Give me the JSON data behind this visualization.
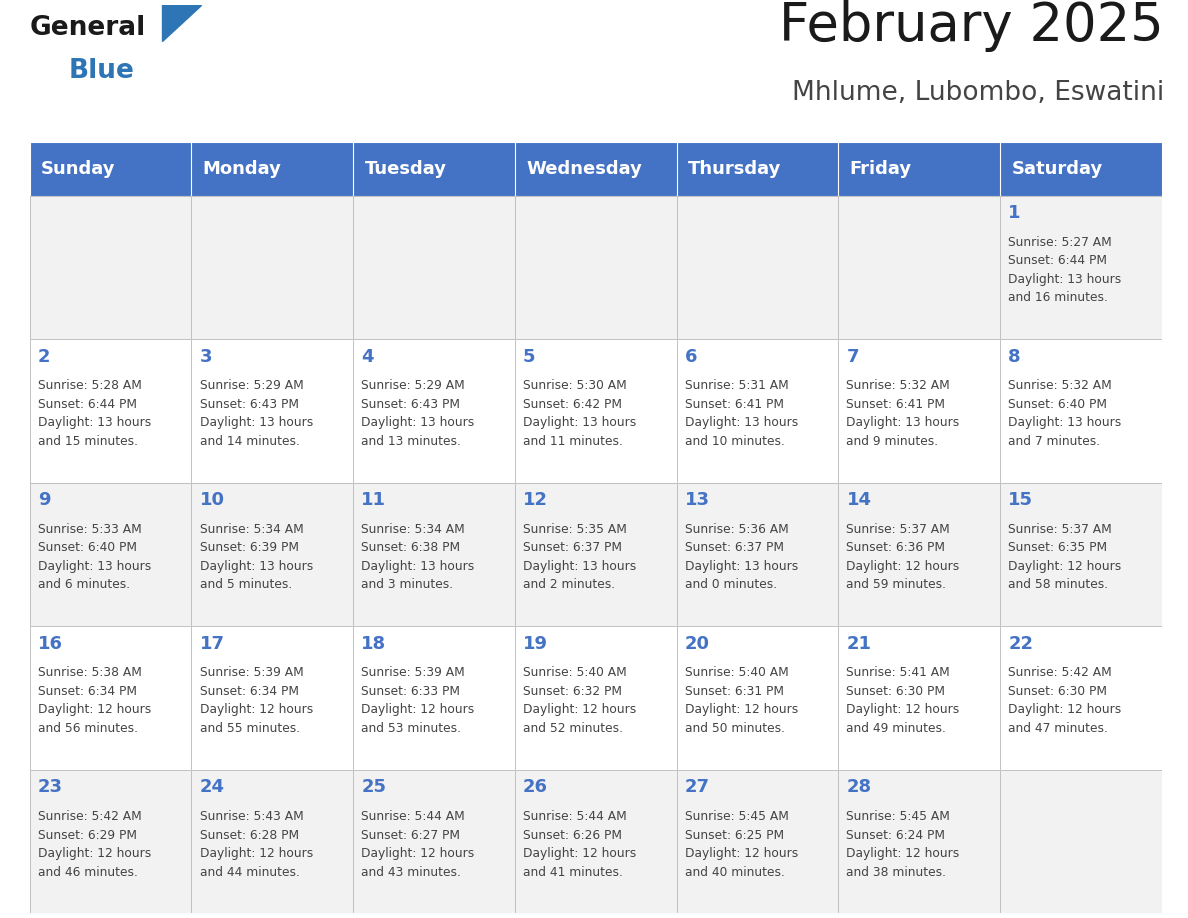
{
  "title": "February 2025",
  "subtitle": "Mhlume, Lubombo, Eswatini",
  "days_of_week": [
    "Sunday",
    "Monday",
    "Tuesday",
    "Wednesday",
    "Thursday",
    "Friday",
    "Saturday"
  ],
  "header_bg": "#4472C4",
  "header_text_color": "#FFFFFF",
  "cell_bg_even": "#F2F2F2",
  "cell_bg_odd": "#FFFFFF",
  "cell_border_color": "#AAAAAA",
  "day_number_color": "#4472C4",
  "cell_text_color": "#444444",
  "title_color": "#1a1a1a",
  "subtitle_color": "#444444",
  "logo_color1": "#1a1a1a",
  "logo_color2": "#2E75B6",
  "logo_triangle_color": "#2E75B6",
  "calendar": [
    [
      null,
      null,
      null,
      null,
      null,
      null,
      {
        "day": 1,
        "sunrise": "5:27 AM",
        "sunset": "6:44 PM",
        "daylight_h": "13 hours",
        "daylight_m": "and 16 minutes."
      }
    ],
    [
      {
        "day": 2,
        "sunrise": "5:28 AM",
        "sunset": "6:44 PM",
        "daylight_h": "13 hours",
        "daylight_m": "and 15 minutes."
      },
      {
        "day": 3,
        "sunrise": "5:29 AM",
        "sunset": "6:43 PM",
        "daylight_h": "13 hours",
        "daylight_m": "and 14 minutes."
      },
      {
        "day": 4,
        "sunrise": "5:29 AM",
        "sunset": "6:43 PM",
        "daylight_h": "13 hours",
        "daylight_m": "and 13 minutes."
      },
      {
        "day": 5,
        "sunrise": "5:30 AM",
        "sunset": "6:42 PM",
        "daylight_h": "13 hours",
        "daylight_m": "and 11 minutes."
      },
      {
        "day": 6,
        "sunrise": "5:31 AM",
        "sunset": "6:41 PM",
        "daylight_h": "13 hours",
        "daylight_m": "and 10 minutes."
      },
      {
        "day": 7,
        "sunrise": "5:32 AM",
        "sunset": "6:41 PM",
        "daylight_h": "13 hours",
        "daylight_m": "and 9 minutes."
      },
      {
        "day": 8,
        "sunrise": "5:32 AM",
        "sunset": "6:40 PM",
        "daylight_h": "13 hours",
        "daylight_m": "and 7 minutes."
      }
    ],
    [
      {
        "day": 9,
        "sunrise": "5:33 AM",
        "sunset": "6:40 PM",
        "daylight_h": "13 hours",
        "daylight_m": "and 6 minutes."
      },
      {
        "day": 10,
        "sunrise": "5:34 AM",
        "sunset": "6:39 PM",
        "daylight_h": "13 hours",
        "daylight_m": "and 5 minutes."
      },
      {
        "day": 11,
        "sunrise": "5:34 AM",
        "sunset": "6:38 PM",
        "daylight_h": "13 hours",
        "daylight_m": "and 3 minutes."
      },
      {
        "day": 12,
        "sunrise": "5:35 AM",
        "sunset": "6:37 PM",
        "daylight_h": "13 hours",
        "daylight_m": "and 2 minutes."
      },
      {
        "day": 13,
        "sunrise": "5:36 AM",
        "sunset": "6:37 PM",
        "daylight_h": "13 hours",
        "daylight_m": "and 0 minutes."
      },
      {
        "day": 14,
        "sunrise": "5:37 AM",
        "sunset": "6:36 PM",
        "daylight_h": "12 hours",
        "daylight_m": "and 59 minutes."
      },
      {
        "day": 15,
        "sunrise": "5:37 AM",
        "sunset": "6:35 PM",
        "daylight_h": "12 hours",
        "daylight_m": "and 58 minutes."
      }
    ],
    [
      {
        "day": 16,
        "sunrise": "5:38 AM",
        "sunset": "6:34 PM",
        "daylight_h": "12 hours",
        "daylight_m": "and 56 minutes."
      },
      {
        "day": 17,
        "sunrise": "5:39 AM",
        "sunset": "6:34 PM",
        "daylight_h": "12 hours",
        "daylight_m": "and 55 minutes."
      },
      {
        "day": 18,
        "sunrise": "5:39 AM",
        "sunset": "6:33 PM",
        "daylight_h": "12 hours",
        "daylight_m": "and 53 minutes."
      },
      {
        "day": 19,
        "sunrise": "5:40 AM",
        "sunset": "6:32 PM",
        "daylight_h": "12 hours",
        "daylight_m": "and 52 minutes."
      },
      {
        "day": 20,
        "sunrise": "5:40 AM",
        "sunset": "6:31 PM",
        "daylight_h": "12 hours",
        "daylight_m": "and 50 minutes."
      },
      {
        "day": 21,
        "sunrise": "5:41 AM",
        "sunset": "6:30 PM",
        "daylight_h": "12 hours",
        "daylight_m": "and 49 minutes."
      },
      {
        "day": 22,
        "sunrise": "5:42 AM",
        "sunset": "6:30 PM",
        "daylight_h": "12 hours",
        "daylight_m": "and 47 minutes."
      }
    ],
    [
      {
        "day": 23,
        "sunrise": "5:42 AM",
        "sunset": "6:29 PM",
        "daylight_h": "12 hours",
        "daylight_m": "and 46 minutes."
      },
      {
        "day": 24,
        "sunrise": "5:43 AM",
        "sunset": "6:28 PM",
        "daylight_h": "12 hours",
        "daylight_m": "and 44 minutes."
      },
      {
        "day": 25,
        "sunrise": "5:44 AM",
        "sunset": "6:27 PM",
        "daylight_h": "12 hours",
        "daylight_m": "and 43 minutes."
      },
      {
        "day": 26,
        "sunrise": "5:44 AM",
        "sunset": "6:26 PM",
        "daylight_h": "12 hours",
        "daylight_m": "and 41 minutes."
      },
      {
        "day": 27,
        "sunrise": "5:45 AM",
        "sunset": "6:25 PM",
        "daylight_h": "12 hours",
        "daylight_m": "and 40 minutes."
      },
      {
        "day": 28,
        "sunrise": "5:45 AM",
        "sunset": "6:24 PM",
        "daylight_h": "12 hours",
        "daylight_m": "and 38 minutes."
      },
      null
    ]
  ]
}
